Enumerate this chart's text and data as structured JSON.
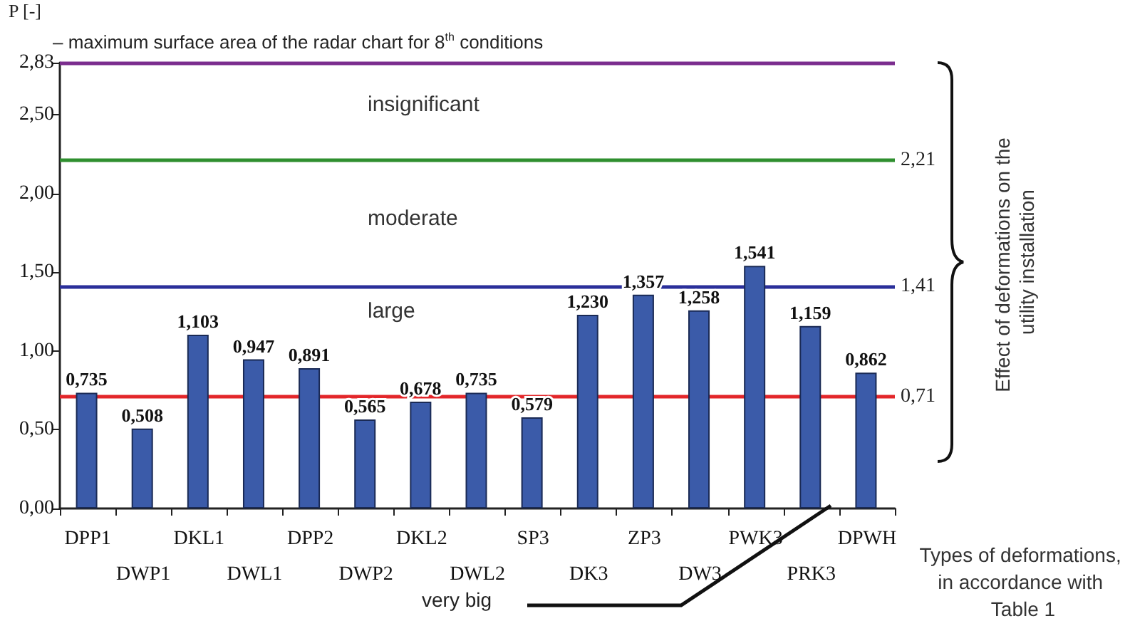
{
  "chart_data": {
    "type": "bar",
    "ylabel": "P [-]",
    "xlabel": "Types of deformations, in accordance with Table 1",
    "categories": [
      "DPP1",
      "DWP1",
      "DKL1",
      "DWL1",
      "DPP2",
      "DWP2",
      "DKL2",
      "DWL2",
      "SP3",
      "DK3",
      "ZP3",
      "DW3",
      "PWK3",
      "PRK3",
      "DPWH"
    ],
    "values": [
      0.735,
      0.508,
      1.103,
      0.947,
      0.891,
      0.565,
      0.678,
      0.735,
      0.579,
      1.23,
      1.357,
      1.258,
      1.541,
      1.159,
      0.862
    ],
    "value_labels": [
      "0,735",
      "0,508",
      "1,103",
      "0,947",
      "0,891",
      "0,565",
      "0,678",
      "0,735",
      "0,579",
      "1,230",
      "1,357",
      "1,258",
      "1,541",
      "1,159",
      "0,862"
    ],
    "color": "#3b5ba9",
    "ylim": [
      0,
      2.83
    ],
    "yticks": [
      {
        "value": 0,
        "label": "0,00"
      },
      {
        "value": 0.5,
        "label": "0,50"
      },
      {
        "value": 1,
        "label": "1,00"
      },
      {
        "value": 1.5,
        "label": "1,50"
      },
      {
        "value": 2,
        "label": "2,00"
      },
      {
        "value": 2.5,
        "label": "2,50"
      },
      {
        "value": 2.83,
        "label": "2,83"
      }
    ],
    "grid": false,
    "ref_lines": [
      {
        "axis": "y",
        "value": 0.71,
        "label": "0,71",
        "color": "#e3262a"
      },
      {
        "axis": "y",
        "value": 1.41,
        "label": "1,41",
        "color": "#2a2f9a"
      },
      {
        "axis": "y",
        "value": 2.21,
        "label": "2,21",
        "color": "#2f8f2f"
      },
      {
        "axis": "y",
        "value": 2.83,
        "label": null,
        "color": "#7b2d8e"
      }
    ],
    "annotations": [
      "– maximum surface area of the radar chart for 8$^{th}$ conditions",
      "Effect of deformations on the utility installation",
      "very big",
      "large",
      "moderate",
      "insignificant"
    ]
  }
}
